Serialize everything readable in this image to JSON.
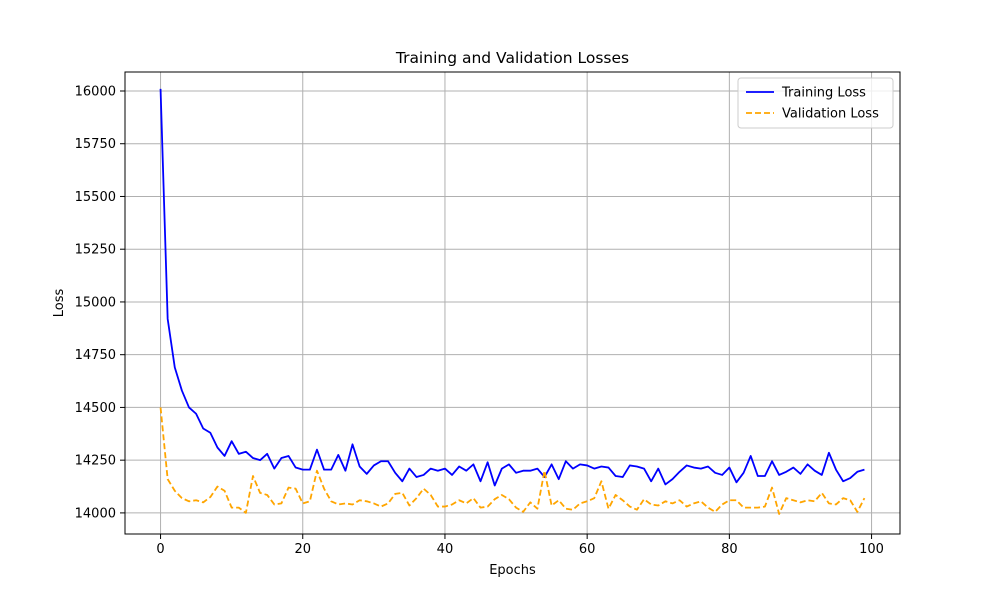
{
  "chart_data": {
    "type": "line",
    "title": "Training and Validation Losses",
    "xlabel": "Epochs",
    "ylabel": "Loss",
    "xlim": [
      -5,
      104
    ],
    "ylim": [
      13900,
      16090
    ],
    "xticks": [
      0,
      20,
      40,
      60,
      80,
      100
    ],
    "yticks": [
      14000,
      14250,
      14500,
      14750,
      15000,
      15250,
      15500,
      15750,
      16000
    ],
    "grid": true,
    "legend_position": "upper-right",
    "series": [
      {
        "name": "Training Loss",
        "color": "#0000ff",
        "style": "solid",
        "x": [
          0,
          1,
          2,
          3,
          4,
          5,
          6,
          7,
          8,
          9,
          10,
          11,
          12,
          13,
          14,
          15,
          16,
          17,
          18,
          19,
          20,
          21,
          22,
          23,
          24,
          25,
          26,
          27,
          28,
          29,
          30,
          31,
          32,
          33,
          34,
          35,
          36,
          37,
          38,
          39,
          40,
          41,
          42,
          43,
          44,
          45,
          46,
          47,
          48,
          49,
          50,
          51,
          52,
          53,
          54,
          55,
          56,
          57,
          58,
          59,
          60,
          61,
          62,
          63,
          64,
          65,
          66,
          67,
          68,
          69,
          70,
          71,
          72,
          73,
          74,
          75,
          76,
          77,
          78,
          79,
          80,
          81,
          82,
          83,
          84,
          85,
          86,
          87,
          88,
          89,
          90,
          91,
          92,
          93,
          94,
          95,
          96,
          97,
          98,
          99
        ],
        "values": [
          16010,
          14920,
          14690,
          14580,
          14500,
          14470,
          14400,
          14380,
          14310,
          14270,
          14340,
          14280,
          14290,
          14260,
          14250,
          14280,
          14210,
          14260,
          14270,
          14215,
          14205,
          14205,
          14300,
          14205,
          14205,
          14275,
          14200,
          14325,
          14220,
          14185,
          14225,
          14245,
          14245,
          14190,
          14150,
          14210,
          14170,
          14180,
          14210,
          14200,
          14210,
          14180,
          14220,
          14200,
          14230,
          14150,
          14240,
          14130,
          14210,
          14230,
          14190,
          14200,
          14200,
          14210,
          14170,
          14230,
          14160,
          14245,
          14210,
          14230,
          14225,
          14210,
          14220,
          14215,
          14175,
          14170,
          14225,
          14220,
          14210,
          14150,
          14210,
          14135,
          14160,
          14195,
          14225,
          14215,
          14210,
          14220,
          14190,
          14180,
          14215,
          14145,
          14190,
          14270,
          14175,
          14175,
          14245,
          14180,
          14195,
          14215,
          14185,
          14230,
          14200,
          14180,
          14285,
          14205,
          14150,
          14165,
          14195,
          14205
        ]
      },
      {
        "name": "Validation Loss",
        "color": "#ffa500",
        "style": "dashed",
        "x": [
          0,
          1,
          2,
          3,
          4,
          5,
          6,
          7,
          8,
          9,
          10,
          11,
          12,
          13,
          14,
          15,
          16,
          17,
          18,
          19,
          20,
          21,
          22,
          23,
          24,
          25,
          26,
          27,
          28,
          29,
          30,
          31,
          32,
          33,
          34,
          35,
          36,
          37,
          38,
          39,
          40,
          41,
          42,
          43,
          44,
          45,
          46,
          47,
          48,
          49,
          50,
          51,
          52,
          53,
          54,
          55,
          56,
          57,
          58,
          59,
          60,
          61,
          62,
          63,
          64,
          65,
          66,
          67,
          68,
          69,
          70,
          71,
          72,
          73,
          74,
          75,
          76,
          77,
          78,
          79,
          80,
          81,
          82,
          83,
          84,
          85,
          86,
          87,
          88,
          89,
          90,
          91,
          92,
          93,
          94,
          95,
          96,
          97,
          98,
          99
        ],
        "values": [
          14500,
          14160,
          14105,
          14070,
          14055,
          14060,
          14050,
          14075,
          14125,
          14105,
          14025,
          14025,
          14000,
          14175,
          14095,
          14085,
          14040,
          14045,
          14120,
          14115,
          14045,
          14055,
          14200,
          14115,
          14055,
          14040,
          14045,
          14040,
          14060,
          14055,
          14045,
          14030,
          14045,
          14090,
          14095,
          14035,
          14070,
          14115,
          14085,
          14030,
          14030,
          14040,
          14060,
          14045,
          14070,
          14025,
          14030,
          14065,
          14085,
          14065,
          14025,
          14005,
          14050,
          14020,
          14200,
          14035,
          14060,
          14020,
          14015,
          14045,
          14055,
          14070,
          14150,
          14020,
          14085,
          14060,
          14030,
          14015,
          14065,
          14040,
          14035,
          14055,
          14045,
          14060,
          14030,
          14045,
          14055,
          14025,
          14005,
          14040,
          14060,
          14060,
          14025,
          14025,
          14025,
          14030,
          14120,
          13995,
          14070,
          14060,
          14050,
          14060,
          14055,
          14095,
          14045,
          14040,
          14070,
          14060,
          14005,
          14070
        ]
      }
    ]
  }
}
